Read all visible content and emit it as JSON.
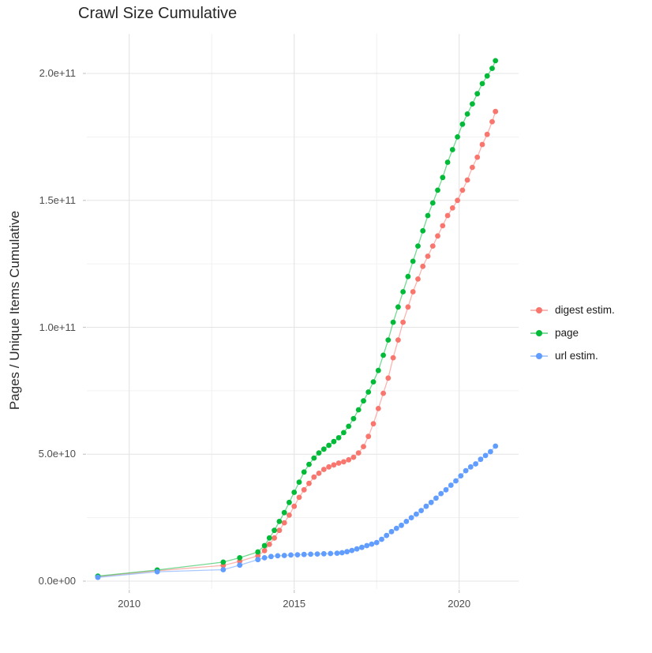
{
  "chart_data": {
    "type": "line",
    "title": "Crawl Size Cumulative",
    "subtitle": "",
    "xlabel": "",
    "ylabel": "Pages / Unique Items Cumulative",
    "legend_position": "right",
    "grid": "major+minor",
    "xlim": [
      2008.7,
      2021.85
    ],
    "ylim": [
      0,
      217000000000.0
    ],
    "x_ticks": [
      {
        "label": "2010",
        "year": 2010
      },
      {
        "label": "2015",
        "year": 2015
      },
      {
        "label": "2020",
        "year": 2020
      }
    ],
    "x_minor_years": [
      2012.5,
      2017.5
    ],
    "y_ticks": [
      {
        "label": "0.0e+00",
        "value": 0
      },
      {
        "label": "5.0e+10",
        "value": 50000000000.0
      },
      {
        "label": "1.0e+11",
        "value": 100000000000.0
      },
      {
        "label": "1.5e+11",
        "value": 150000000000.0
      },
      {
        "label": "2.0e+11",
        "value": 200000000000.0
      }
    ],
    "y_minor_values": [
      25000000000.0,
      75000000000.0,
      125000000000.0,
      175000000000.0
    ],
    "colors": {
      "grid_major": "#e4e4e4",
      "grid_minor": "#f1f1f1",
      "tick_mark": "#c9c9c9",
      "axis_text": "#4d4d4d",
      "title_text": "#262626"
    },
    "series": [
      {
        "name": "digest estim.",
        "color": "#F8766D",
        "points": [
          [
            2009.05,
            1800000000.0
          ],
          [
            2010.85,
            4100000000.0
          ],
          [
            2012.85,
            6200000000.0
          ],
          [
            2013.35,
            7800000000.0
          ],
          [
            2013.9,
            10000000000.0
          ],
          [
            2014.1,
            12000000000.0
          ],
          [
            2014.25,
            14500000000.0
          ],
          [
            2014.4,
            17000000000.0
          ],
          [
            2014.55,
            20000000000.0
          ],
          [
            2014.7,
            23000000000.0
          ],
          [
            2014.85,
            26000000000.0
          ],
          [
            2015.0,
            29500000000.0
          ],
          [
            2015.15,
            33000000000.0
          ],
          [
            2015.3,
            36000000000.0
          ],
          [
            2015.45,
            38500000000.0
          ],
          [
            2015.6,
            41000000000.0
          ],
          [
            2015.75,
            42500000000.0
          ],
          [
            2015.9,
            44000000000.0
          ],
          [
            2016.05,
            45000000000.0
          ],
          [
            2016.2,
            45800000000.0
          ],
          [
            2016.35,
            46500000000.0
          ],
          [
            2016.5,
            47000000000.0
          ],
          [
            2016.65,
            47800000000.0
          ],
          [
            2016.8,
            48800000000.0
          ],
          [
            2016.95,
            50500000000.0
          ],
          [
            2017.1,
            53000000000.0
          ],
          [
            2017.25,
            57000000000.0
          ],
          [
            2017.4,
            62000000000.0
          ],
          [
            2017.55,
            68000000000.0
          ],
          [
            2017.7,
            74000000000.0
          ],
          [
            2017.85,
            80000000000.0
          ],
          [
            2018.0,
            88000000000.0
          ],
          [
            2018.15,
            95000000000.0
          ],
          [
            2018.3,
            102000000000.0
          ],
          [
            2018.45,
            108000000000.0
          ],
          [
            2018.6,
            114000000000.0
          ],
          [
            2018.75,
            119000000000.0
          ],
          [
            2018.9,
            124000000000.0
          ],
          [
            2019.05,
            128000000000.0
          ],
          [
            2019.2,
            132000000000.0
          ],
          [
            2019.35,
            136000000000.0
          ],
          [
            2019.5,
            140000000000.0
          ],
          [
            2019.65,
            144000000000.0
          ],
          [
            2019.8,
            147000000000.0
          ],
          [
            2019.95,
            150000000000.0
          ],
          [
            2020.1,
            154000000000.0
          ],
          [
            2020.25,
            158000000000.0
          ],
          [
            2020.4,
            163000000000.0
          ],
          [
            2020.55,
            167000000000.0
          ],
          [
            2020.7,
            172000000000.0
          ],
          [
            2020.85,
            176000000000.0
          ],
          [
            2021.0,
            181000000000.0
          ],
          [
            2021.1,
            185000000000.0
          ]
        ]
      },
      {
        "name": "page",
        "color": "#00BA38",
        "points": [
          [
            2009.05,
            2000000000.0
          ],
          [
            2010.85,
            4400000000.0
          ],
          [
            2012.85,
            7500000000.0
          ],
          [
            2013.35,
            9200000000.0
          ],
          [
            2013.9,
            11500000000.0
          ],
          [
            2014.1,
            14000000000.0
          ],
          [
            2014.25,
            17000000000.0
          ],
          [
            2014.4,
            20000000000.0
          ],
          [
            2014.55,
            23500000000.0
          ],
          [
            2014.7,
            27000000000.0
          ],
          [
            2014.85,
            31000000000.0
          ],
          [
            2015.0,
            35000000000.0
          ],
          [
            2015.15,
            39000000000.0
          ],
          [
            2015.3,
            43000000000.0
          ],
          [
            2015.45,
            46000000000.0
          ],
          [
            2015.6,
            48500000000.0
          ],
          [
            2015.75,
            50500000000.0
          ],
          [
            2015.9,
            52000000000.0
          ],
          [
            2016.05,
            53500000000.0
          ],
          [
            2016.2,
            55000000000.0
          ],
          [
            2016.35,
            56500000000.0
          ],
          [
            2016.5,
            58500000000.0
          ],
          [
            2016.65,
            61000000000.0
          ],
          [
            2016.8,
            64000000000.0
          ],
          [
            2016.95,
            67500000000.0
          ],
          [
            2017.1,
            71000000000.0
          ],
          [
            2017.25,
            74500000000.0
          ],
          [
            2017.4,
            78500000000.0
          ],
          [
            2017.55,
            83000000000.0
          ],
          [
            2017.7,
            89000000000.0
          ],
          [
            2017.85,
            95000000000.0
          ],
          [
            2018.0,
            102000000000.0
          ],
          [
            2018.15,
            108000000000.0
          ],
          [
            2018.3,
            114000000000.0
          ],
          [
            2018.45,
            120000000000.0
          ],
          [
            2018.6,
            126000000000.0
          ],
          [
            2018.75,
            132000000000.0
          ],
          [
            2018.9,
            138000000000.0
          ],
          [
            2019.05,
            144000000000.0
          ],
          [
            2019.2,
            149000000000.0
          ],
          [
            2019.35,
            154000000000.0
          ],
          [
            2019.5,
            159000000000.0
          ],
          [
            2019.65,
            165000000000.0
          ],
          [
            2019.8,
            170000000000.0
          ],
          [
            2019.95,
            175000000000.0
          ],
          [
            2020.1,
            180000000000.0
          ],
          [
            2020.25,
            184000000000.0
          ],
          [
            2020.4,
            188000000000.0
          ],
          [
            2020.55,
            192000000000.0
          ],
          [
            2020.7,
            196000000000.0
          ],
          [
            2020.85,
            199000000000.0
          ],
          [
            2021.0,
            202000000000.0
          ],
          [
            2021.1,
            205000000000.0
          ]
        ]
      },
      {
        "name": "url estim.",
        "color": "#619CFF",
        "points": [
          [
            2009.05,
            1500000000.0
          ],
          [
            2010.85,
            3700000000.0
          ],
          [
            2012.85,
            4500000000.0
          ],
          [
            2013.35,
            6300000000.0
          ],
          [
            2013.9,
            8500000000.0
          ],
          [
            2014.1,
            9200000000.0
          ],
          [
            2014.3,
            9700000000.0
          ],
          [
            2014.5,
            10000000000.0
          ],
          [
            2014.7,
            10100000000.0
          ],
          [
            2014.9,
            10300000000.0
          ],
          [
            2015.1,
            10400000000.0
          ],
          [
            2015.3,
            10500000000.0
          ],
          [
            2015.5,
            10600000000.0
          ],
          [
            2015.7,
            10700000000.0
          ],
          [
            2015.9,
            10800000000.0
          ],
          [
            2016.1,
            10900000000.0
          ],
          [
            2016.3,
            11000000000.0
          ],
          [
            2016.45,
            11200000000.0
          ],
          [
            2016.6,
            11600000000.0
          ],
          [
            2016.75,
            12100000000.0
          ],
          [
            2016.9,
            12700000000.0
          ],
          [
            2017.05,
            13300000000.0
          ],
          [
            2017.2,
            14000000000.0
          ],
          [
            2017.35,
            14600000000.0
          ],
          [
            2017.5,
            15200000000.0
          ],
          [
            2017.65,
            16500000000.0
          ],
          [
            2017.8,
            18000000000.0
          ],
          [
            2017.95,
            19500000000.0
          ],
          [
            2018.1,
            20800000000.0
          ],
          [
            2018.25,
            22000000000.0
          ],
          [
            2018.4,
            23500000000.0
          ],
          [
            2018.55,
            25000000000.0
          ],
          [
            2018.7,
            26400000000.0
          ],
          [
            2018.85,
            27800000000.0
          ],
          [
            2019.0,
            29500000000.0
          ],
          [
            2019.15,
            31000000000.0
          ],
          [
            2019.3,
            32700000000.0
          ],
          [
            2019.45,
            34500000000.0
          ],
          [
            2019.6,
            36000000000.0
          ],
          [
            2019.75,
            37800000000.0
          ],
          [
            2019.9,
            39500000000.0
          ],
          [
            2020.05,
            41500000000.0
          ],
          [
            2020.2,
            43500000000.0
          ],
          [
            2020.35,
            45000000000.0
          ],
          [
            2020.5,
            46200000000.0
          ],
          [
            2020.65,
            48000000000.0
          ],
          [
            2020.8,
            49500000000.0
          ],
          [
            2020.95,
            51000000000.0
          ],
          [
            2021.1,
            53200000000.0
          ]
        ]
      }
    ]
  }
}
